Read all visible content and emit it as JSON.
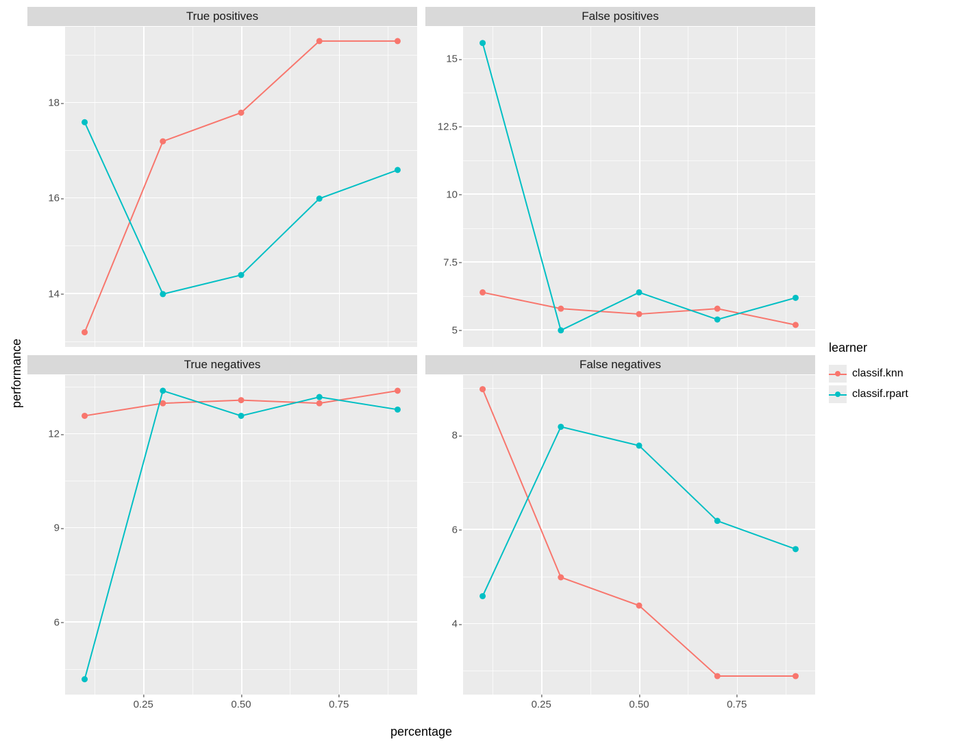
{
  "axis_labels": {
    "x": "percentage",
    "y": "performance"
  },
  "legend": {
    "title": "learner",
    "items": [
      {
        "name": "classif.knn",
        "color": "#f8766d"
      },
      {
        "name": "classif.rpart",
        "color": "#00bfc4"
      }
    ]
  },
  "style": {
    "panel_bg": "#ebebeb",
    "grid_color": "#ffffff",
    "strip_bg": "#d9d9d9",
    "line_width": 2.0,
    "marker_radius": 4.5,
    "font_family": "Arial",
    "tick_fontsize": 15,
    "label_fontsize": 18,
    "strip_fontsize": 17
  },
  "x_values": [
    0.1,
    0.3,
    0.5,
    0.7,
    0.9
  ],
  "x_range": [
    0.05,
    0.95
  ],
  "x_ticks_major": [
    0.25,
    0.5,
    0.75
  ],
  "x_ticks_minor": [
    0.125,
    0.375,
    0.625,
    0.875
  ],
  "facets": [
    {
      "title": "True positives",
      "y_range": [
        12.9,
        19.6
      ],
      "y_ticks_major": [
        14,
        16,
        18
      ],
      "y_ticks_minor": [
        13,
        15,
        17,
        19
      ],
      "series": [
        {
          "learner": "classif.knn",
          "color": "#f8766d",
          "y": [
            13.2,
            17.2,
            17.8,
            19.3,
            19.3
          ]
        },
        {
          "learner": "classif.rpart",
          "color": "#00bfc4",
          "y": [
            17.6,
            14.0,
            14.4,
            16.0,
            16.6
          ]
        }
      ]
    },
    {
      "title": "False positives",
      "y_range": [
        4.4,
        16.2
      ],
      "y_ticks_major": [
        5.0,
        7.5,
        10.0,
        12.5,
        15.0
      ],
      "y_ticks_minor": [
        6.25,
        8.75,
        11.25,
        13.75
      ],
      "series": [
        {
          "learner": "classif.knn",
          "color": "#f8766d",
          "y": [
            6.4,
            5.8,
            5.6,
            5.8,
            5.2
          ]
        },
        {
          "learner": "classif.rpart",
          "color": "#00bfc4",
          "y": [
            15.6,
            5.0,
            6.4,
            5.4,
            6.2
          ]
        }
      ]
    },
    {
      "title": "True negatives",
      "y_range": [
        3.7,
        13.9
      ],
      "y_ticks_major": [
        6,
        9,
        12
      ],
      "y_ticks_minor": [
        4.5,
        7.5,
        10.5,
        13.5
      ],
      "series": [
        {
          "learner": "classif.knn",
          "color": "#f8766d",
          "y": [
            12.6,
            13.0,
            13.1,
            13.0,
            13.4
          ]
        },
        {
          "learner": "classif.rpart",
          "color": "#00bfc4",
          "y": [
            4.2,
            13.4,
            12.6,
            13.2,
            12.8
          ]
        }
      ]
    },
    {
      "title": "False negatives",
      "y_range": [
        2.5,
        9.3
      ],
      "y_ticks_major": [
        4,
        6,
        8
      ],
      "y_ticks_minor": [
        3,
        5,
        7,
        9
      ],
      "series": [
        {
          "learner": "classif.knn",
          "color": "#f8766d",
          "y": [
            9.0,
            5.0,
            4.4,
            2.9,
            2.9
          ]
        },
        {
          "learner": "classif.rpart",
          "color": "#00bfc4",
          "y": [
            4.6,
            8.2,
            7.8,
            6.2,
            5.6
          ]
        }
      ]
    }
  ]
}
